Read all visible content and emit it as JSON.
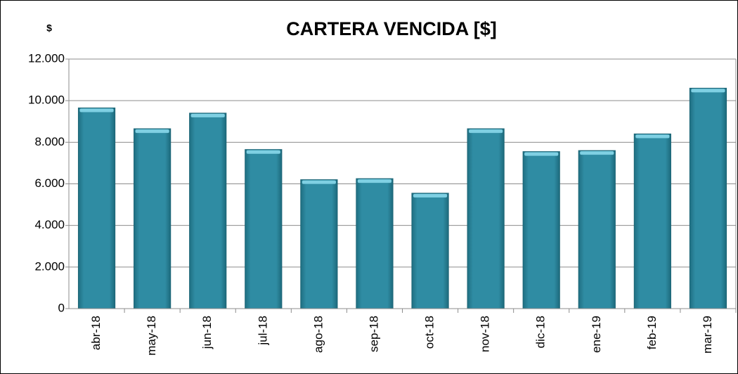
{
  "chart_data": {
    "type": "bar",
    "title": "CARTERA VENCIDA [$]",
    "y_label": "$",
    "categories": [
      "abr-18",
      "may-18",
      "jun-18",
      "jul-18",
      "ago-18",
      "sep-18",
      "oct-18",
      "nov-18",
      "dic-18",
      "ene-19",
      "feb-19",
      "mar-19"
    ],
    "values": [
      9650,
      8650,
      9400,
      7650,
      6200,
      6250,
      5550,
      8650,
      7550,
      7600,
      8400,
      10600
    ],
    "color": "#2f8ca3",
    "ylim": [
      0,
      12000
    ],
    "yticks": [
      0,
      {
        "value": 2000,
        "label": "2.000"
      },
      {
        "value": 4000,
        "label": "4.000"
      },
      {
        "value": 6000,
        "label": "6.000"
      },
      {
        "value": 8000,
        "label": "8.000"
      },
      {
        "value": 10000,
        "label": "10.000"
      },
      {
        "value": 12000,
        "label": "12.000"
      }
    ],
    "grid": true
  }
}
